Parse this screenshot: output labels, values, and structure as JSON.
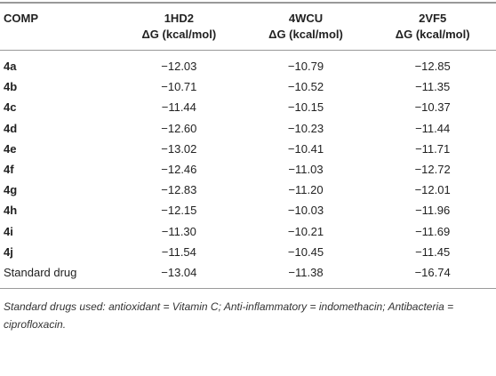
{
  "table": {
    "first_header": "COMP",
    "columns": [
      {
        "name": "1HD2",
        "unit": "ΔG (kcal/mol)"
      },
      {
        "name": "4WCU",
        "unit": "ΔG (kcal/mol)"
      },
      {
        "name": "2VF5",
        "unit": "ΔG (kcal/mol)"
      }
    ],
    "rows": [
      [
        "4a",
        "−12.03",
        "−10.79",
        "−12.85"
      ],
      [
        "4b",
        "−10.71",
        "−10.52",
        "−11.35"
      ],
      [
        "4c",
        "−11.44",
        "−10.15",
        "−10.37"
      ],
      [
        "4d",
        "−12.60",
        "−10.23",
        "−11.44"
      ],
      [
        "4e",
        "−13.02",
        "−10.41",
        "−11.71"
      ],
      [
        "4f",
        "−12.46",
        "−11.03",
        "−12.72"
      ],
      [
        "4g",
        "−12.83",
        "−11.20",
        "−12.01"
      ],
      [
        "4h",
        "−12.15",
        "−10.03",
        "−11.96"
      ],
      [
        "4i",
        "−11.30",
        "−10.21",
        "−11.69"
      ],
      [
        "4j",
        "−11.54",
        "−10.45",
        "−11.45"
      ],
      [
        "Standard drug",
        "−13.04",
        "−11.38",
        "−16.74"
      ]
    ],
    "footnote": "Standard drugs used: antioxidant = Vitamin C; Anti-inflammatory = indomethacin; Antibacteria = ciprofloxacin."
  }
}
